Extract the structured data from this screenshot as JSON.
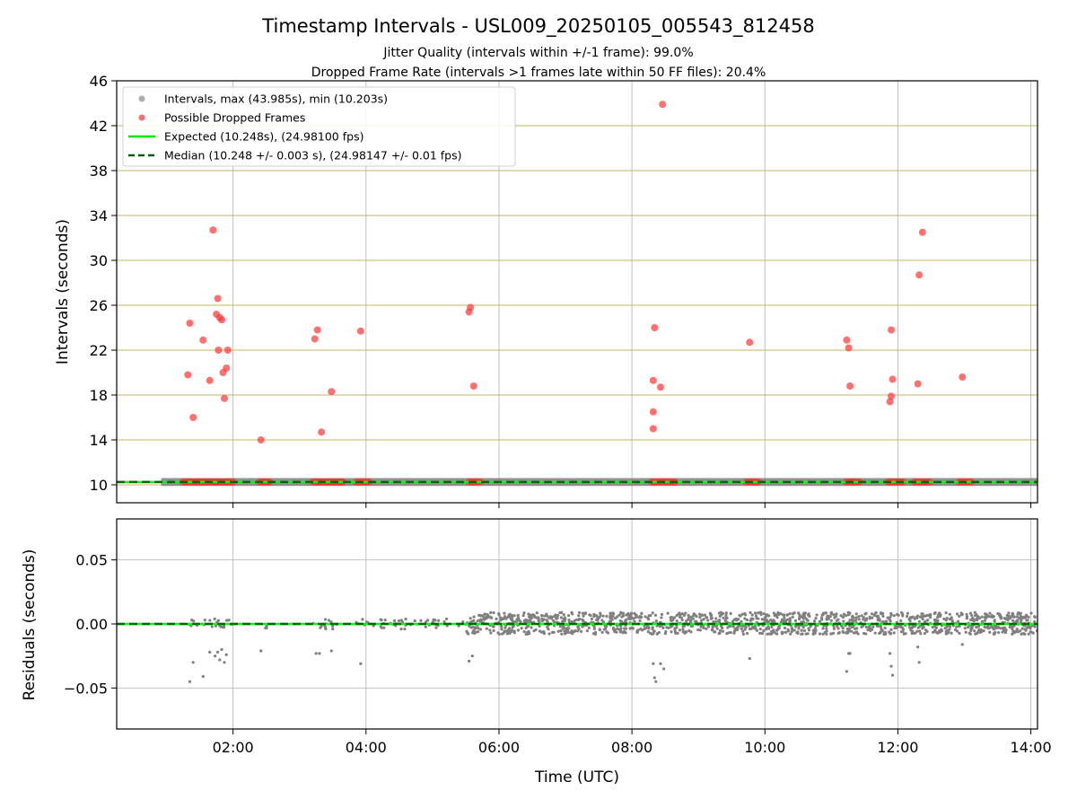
{
  "title": "Timestamp Intervals - USL009_20250105_005543_812458",
  "subtitle_1": "Jitter Quality (intervals within +/-1 frame): 99.0%",
  "subtitle_2": "Dropped Frame Rate (intervals >1 frames late within 50 FF files): 20.4%",
  "colors": {
    "interval_gray": "#808080",
    "dropped_red": "#ff0000",
    "expected_green": "#00ff00",
    "median_darkgreen": "#006400",
    "grid_tan": "#c8b464",
    "grid_gray": "#c0c0c0"
  },
  "chart_data": [
    {
      "type": "scatter",
      "xlabel": "",
      "ylabel": "Intervals (seconds)",
      "x_unit": "hours UTC",
      "xlim": [
        0.25,
        14.1
      ],
      "ylim": [
        8.4,
        46
      ],
      "yticks": [
        10,
        14,
        18,
        22,
        26,
        30,
        34,
        38,
        42,
        46
      ],
      "ytick_labels": [
        "10",
        "14",
        "18",
        "22",
        "26",
        "30",
        "34",
        "38",
        "42",
        "46"
      ],
      "xticks": [
        2,
        4,
        6,
        8,
        10,
        12,
        14
      ],
      "xtick_labels": [
        "02:00",
        "04:00",
        "06:00",
        "08:00",
        "10:00",
        "12:00",
        "14:00"
      ],
      "grid": true,
      "legend_position": "top-left",
      "legend": [
        {
          "label": "Intervals, max (43.985s), min (10.203s)",
          "kind": "marker",
          "color": "#a0a0a0"
        },
        {
          "label": "Possible Dropped Frames",
          "kind": "marker",
          "color": "#ff5555"
        },
        {
          "label": "Expected (10.248s), (24.98100 fps)",
          "kind": "line",
          "color": "#00ee00"
        },
        {
          "label": "Median (10.248 +/- 0.003 s), (24.98147 +/- 0.01 fps)",
          "kind": "dashed",
          "color": "#006400"
        }
      ],
      "series": [
        {
          "name": "Intervals, max (43.985s), min (10.203s)",
          "band": {
            "x_start": 0.92,
            "x_end": 14.1,
            "y_low": 9.9,
            "y_high": 10.6
          }
        },
        {
          "name": "Possible Dropped Frames",
          "points": [
            [
              1.32,
              19.8
            ],
            [
              1.35,
              24.4
            ],
            [
              1.4,
              16.0
            ],
            [
              1.55,
              22.9
            ],
            [
              1.65,
              19.3
            ],
            [
              1.7,
              32.7
            ],
            [
              1.75,
              25.2
            ],
            [
              1.77,
              26.6
            ],
            [
              1.78,
              22.0
            ],
            [
              1.8,
              24.9
            ],
            [
              1.83,
              24.7
            ],
            [
              1.85,
              20.0
            ],
            [
              1.87,
              17.7
            ],
            [
              1.9,
              20.4
            ],
            [
              1.92,
              22.0
            ],
            [
              2.42,
              14.0
            ],
            [
              3.23,
              23.0
            ],
            [
              3.27,
              23.8
            ],
            [
              3.33,
              14.7
            ],
            [
              3.48,
              18.3
            ],
            [
              3.92,
              23.7
            ],
            [
              5.55,
              25.4
            ],
            [
              5.57,
              25.8
            ],
            [
              5.62,
              18.8
            ],
            [
              8.32,
              15.0
            ],
            [
              8.32,
              16.5
            ],
            [
              8.32,
              19.3
            ],
            [
              8.34,
              24.0
            ],
            [
              8.43,
              18.7
            ],
            [
              8.46,
              43.9
            ],
            [
              9.77,
              22.7
            ],
            [
              11.23,
              22.9
            ],
            [
              11.26,
              22.2
            ],
            [
              11.28,
              18.8
            ],
            [
              11.88,
              17.4
            ],
            [
              11.9,
              17.9
            ],
            [
              11.9,
              23.8
            ],
            [
              11.92,
              19.4
            ],
            [
              12.3,
              19.0
            ],
            [
              12.32,
              28.7
            ],
            [
              12.37,
              32.5
            ],
            [
              12.97,
              19.6
            ]
          ],
          "baseline_clusters": [
            [
              1.25,
              2.0
            ],
            [
              2.4,
              2.55
            ],
            [
              3.2,
              3.65
            ],
            [
              3.85,
              4.05
            ],
            [
              5.55,
              5.72
            ],
            [
              8.3,
              8.65
            ],
            [
              9.72,
              9.9
            ],
            [
              11.22,
              11.42
            ],
            [
              11.85,
              12.08
            ],
            [
              12.25,
              12.48
            ],
            [
              12.92,
              13.1
            ]
          ],
          "baseline_y": 10.25
        },
        {
          "name": "Expected (10.248s), (24.98100 fps)",
          "y": 10.248
        },
        {
          "name": "Median (10.248 +/- 0.003 s), (24.98147 +/- 0.01 fps)",
          "y": 10.248
        }
      ]
    },
    {
      "type": "scatter",
      "xlabel": "Time (UTC)",
      "ylabel": "Residuals (seconds)",
      "x_unit": "hours UTC",
      "xlim": [
        0.25,
        14.1
      ],
      "ylim": [
        -0.082,
        0.082
      ],
      "yticks": [
        0.05,
        0.0,
        -0.05
      ],
      "ytick_labels": [
        "0.05",
        "0.00",
        "−0.05"
      ],
      "xticks": [
        2,
        4,
        6,
        8,
        10,
        12,
        14
      ],
      "xtick_labels": [
        "02:00",
        "04:00",
        "06:00",
        "08:00",
        "10:00",
        "12:00",
        "14:00"
      ],
      "grid": true,
      "series": [
        {
          "name": "",
          "sparse_clusters": [
            [
              1.25,
              2.0
            ],
            [
              2.4,
              2.55
            ],
            [
              3.2,
              3.65
            ],
            [
              3.85,
              4.05
            ],
            [
              4.1,
              5.5
            ]
          ],
          "dense_range": [
            5.5,
            14.1
          ],
          "dense_y_range": [
            -0.008,
            0.009
          ],
          "outliers": [
            [
              1.35,
              -0.045
            ],
            [
              1.4,
              -0.03
            ],
            [
              1.55,
              -0.041
            ],
            [
              1.65,
              -0.022
            ],
            [
              1.73,
              -0.025
            ],
            [
              1.77,
              -0.022
            ],
            [
              1.8,
              -0.028
            ],
            [
              1.83,
              -0.02
            ],
            [
              1.87,
              -0.03
            ],
            [
              1.9,
              -0.024
            ],
            [
              2.42,
              -0.021
            ],
            [
              3.25,
              -0.023
            ],
            [
              3.3,
              -0.023
            ],
            [
              3.48,
              -0.021
            ],
            [
              3.92,
              -0.031
            ],
            [
              5.55,
              -0.029
            ],
            [
              5.6,
              -0.025
            ],
            [
              8.32,
              -0.031
            ],
            [
              8.34,
              -0.042
            ],
            [
              8.36,
              -0.045
            ],
            [
              8.43,
              -0.031
            ],
            [
              8.48,
              -0.035
            ],
            [
              9.77,
              -0.027
            ],
            [
              11.23,
              -0.037
            ],
            [
              11.26,
              -0.023
            ],
            [
              11.28,
              -0.023
            ],
            [
              11.88,
              -0.023
            ],
            [
              11.9,
              -0.033
            ],
            [
              11.92,
              -0.04
            ],
            [
              12.3,
              -0.018
            ],
            [
              12.32,
              -0.03
            ],
            [
              12.97,
              -0.016
            ]
          ]
        },
        {
          "name": "Expected (10.248s), (24.98100 fps)",
          "y": 0.0
        },
        {
          "name": "Median (10.248 +/- 0.003 s), (24.98147 +/- 0.01 fps)",
          "y": 0.0
        }
      ]
    }
  ]
}
